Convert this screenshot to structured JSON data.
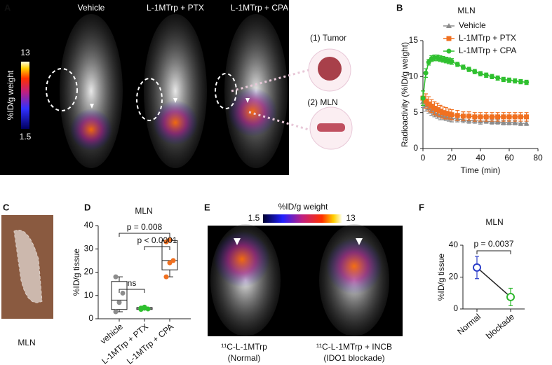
{
  "panels": {
    "A": {
      "label": "A",
      "columns": [
        "Vehicle",
        "L-1MTrp + PTX",
        "L-1MTrp + CPA"
      ],
      "colorbar": {
        "title": "%ID/g weight",
        "max": 13,
        "min": 1.5
      },
      "insets": [
        "(1) Tumor",
        "(2) MLN"
      ]
    },
    "C": {
      "label": "C",
      "caption": "MLN"
    },
    "E": {
      "label": "E",
      "colorbar": {
        "title": "%ID/g weight",
        "min": 1.5,
        "max": 13
      },
      "captions": [
        [
          "¹¹C-L-1MTrp",
          "(Normal)"
        ],
        [
          "¹¹C-L-1MTrp + INCB",
          "(IDO1 blockade)"
        ]
      ]
    }
  },
  "chart_data": [
    {
      "type": "line",
      "label": "B",
      "title": "MLN",
      "x_label": "Time (min)",
      "y_label": "Radioactivity (%ID/g weight)",
      "x": [
        0,
        2,
        4,
        6,
        8,
        10,
        12,
        14,
        16,
        18,
        20,
        24,
        28,
        32,
        36,
        40,
        44,
        48,
        52,
        56,
        60,
        64,
        68,
        72
      ],
      "xlim": [
        0,
        80
      ],
      "xticks": [
        0,
        20,
        40,
        60,
        80
      ],
      "ylim": [
        0,
        15
      ],
      "yticks": [
        0,
        5,
        10,
        15
      ],
      "legend": "upper right",
      "series": [
        {
          "name": "Vehicle",
          "color": "#8c8c8c",
          "marker": "triangle",
          "values": [
            6.5,
            6.0,
            5.6,
            5.3,
            5.0,
            4.8,
            4.6,
            4.5,
            4.4,
            4.3,
            4.2,
            4.1,
            4.0,
            3.9,
            3.9,
            3.8,
            3.8,
            3.7,
            3.7,
            3.6,
            3.6,
            3.6,
            3.5,
            3.5
          ],
          "errors": [
            0.8,
            0.8,
            0.7,
            0.7,
            0.6,
            0.6,
            0.6,
            0.5,
            0.5,
            0.5,
            0.5,
            0.4,
            0.4,
            0.4,
            0.4,
            0.4,
            0.3,
            0.3,
            0.3,
            0.3,
            0.3,
            0.3,
            0.3,
            0.3
          ]
        },
        {
          "name": "L-1MTrp + PTX",
          "color": "#f07020",
          "marker": "square",
          "values": [
            7.0,
            6.6,
            6.2,
            5.9,
            5.6,
            5.4,
            5.2,
            5.0,
            4.9,
            4.8,
            4.7,
            4.6,
            4.5,
            4.5,
            4.4,
            4.4,
            4.4,
            4.4,
            4.4,
            4.4,
            4.4,
            4.4,
            4.4,
            4.4
          ],
          "errors": [
            1.0,
            1.0,
            1.0,
            0.9,
            0.9,
            0.9,
            0.8,
            0.8,
            0.8,
            0.7,
            0.7,
            0.7,
            0.6,
            0.6,
            0.6,
            0.6,
            0.6,
            0.6,
            0.6,
            0.6,
            0.6,
            0.6,
            0.6,
            0.6
          ]
        },
        {
          "name": "L-1MTrp + CPA",
          "color": "#2fc02f",
          "marker": "circle",
          "values": [
            7.0,
            10.5,
            12.0,
            12.5,
            12.6,
            12.6,
            12.5,
            12.4,
            12.3,
            12.2,
            12.1,
            11.7,
            11.3,
            11.0,
            10.7,
            10.4,
            10.2,
            10.0,
            9.8,
            9.6,
            9.5,
            9.4,
            9.3,
            9.2
          ],
          "errors": [
            1.0,
            0.6,
            0.4,
            0.4,
            0.4,
            0.4,
            0.4,
            0.4,
            0.4,
            0.4,
            0.4,
            0.3,
            0.3,
            0.3,
            0.3,
            0.3,
            0.3,
            0.3,
            0.3,
            0.3,
            0.3,
            0.3,
            0.3,
            0.3
          ]
        }
      ]
    },
    {
      "type": "box",
      "label": "D",
      "title": "MLN",
      "y_label": "%ID/g tissue",
      "categories": [
        "vehicle",
        "L-1MTrp + PTX",
        "L-1MTrp + CPA"
      ],
      "ylim": [
        0,
        40
      ],
      "yticks": [
        0,
        10,
        20,
        30,
        40
      ],
      "boxes": [
        {
          "color": "#8c8c8c",
          "min": 3,
          "q1": 4,
          "median": 8,
          "q3": 16,
          "max": 18,
          "points": [
            3,
            7,
            11,
            18
          ]
        },
        {
          "color": "#2fc02f",
          "min": 4,
          "q1": 4,
          "median": 4.5,
          "q3": 4.8,
          "max": 5,
          "points": [
            4,
            4.5,
            4.2,
            4.6,
            5
          ]
        },
        {
          "color": "#f07020",
          "min": 18,
          "q1": 21,
          "median": 25,
          "q3": 33.5,
          "max": 34,
          "points": [
            18,
            24,
            25,
            33,
            34
          ]
        }
      ],
      "annotations": [
        "p = 0.008",
        "p < 0.0001",
        "ns"
      ]
    },
    {
      "type": "line",
      "label": "F",
      "title": "MLN",
      "y_label": "%ID/g tissue",
      "categories": [
        "Normal",
        "blockade"
      ],
      "ylim": [
        0,
        40
      ],
      "yticks": [
        0,
        20,
        40
      ],
      "series": [
        {
          "color": "#222222",
          "point_colors": [
            "#2c3ec9",
            "#2fb82f"
          ],
          "marker": "ring",
          "values": [
            26,
            7.5
          ],
          "errors": [
            7,
            5.5
          ]
        }
      ],
      "annotations": [
        "p = 0.0037"
      ]
    }
  ]
}
